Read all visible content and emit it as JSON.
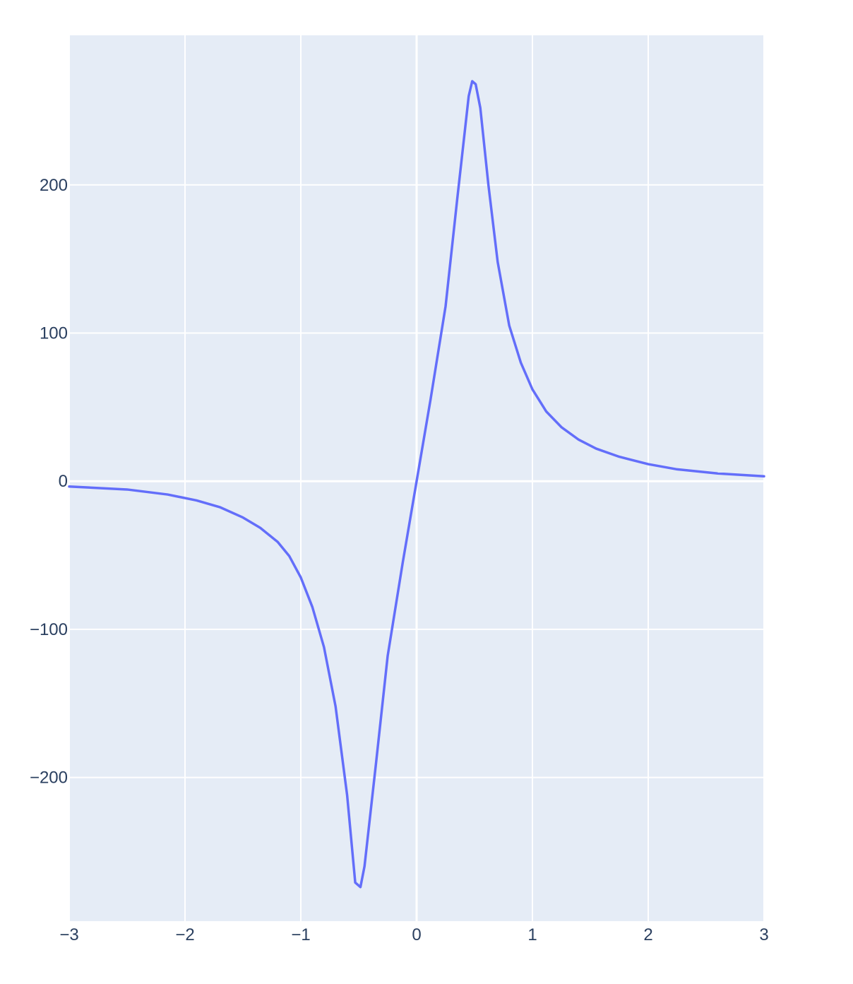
{
  "chart_data": {
    "type": "line",
    "title": "",
    "xlabel": "",
    "ylabel": "",
    "xlim": [
      -3,
      3
    ],
    "ylim": [
      -297,
      301
    ],
    "grid": true,
    "legend": "none",
    "colors": {
      "line": "#636efa",
      "plot_bg": "#e5ecf6",
      "grid": "#ffffff",
      "tick_text": "#2a3f5f"
    },
    "x_ticks": [
      {
        "value": -3,
        "label": "−3"
      },
      {
        "value": -2,
        "label": "−2"
      },
      {
        "value": -1,
        "label": "−1"
      },
      {
        "value": 0,
        "label": "0"
      },
      {
        "value": 1,
        "label": "1"
      },
      {
        "value": 2,
        "label": "2"
      },
      {
        "value": 3,
        "label": "3"
      }
    ],
    "y_ticks": [
      {
        "value": -200,
        "label": "−200"
      },
      {
        "value": -100,
        "label": "−100"
      },
      {
        "value": 0,
        "label": "0"
      },
      {
        "value": 100,
        "label": "100"
      },
      {
        "value": 200,
        "label": "200"
      }
    ],
    "series": [
      {
        "values": [
          {
            "x": -3.0,
            "y": -3.6
          },
          {
            "x": -2.5,
            "y": -5.6
          },
          {
            "x": -2.15,
            "y": -9.0
          },
          {
            "x": -1.9,
            "y": -13.0
          },
          {
            "x": -1.7,
            "y": -17.5
          },
          {
            "x": -1.5,
            "y": -24.5
          },
          {
            "x": -1.35,
            "y": -31.5
          },
          {
            "x": -1.2,
            "y": -41.0
          },
          {
            "x": -1.1,
            "y": -50.5
          },
          {
            "x": -1.0,
            "y": -65.0
          },
          {
            "x": -0.9,
            "y": -85.0
          },
          {
            "x": -0.8,
            "y": -112.0
          },
          {
            "x": -0.7,
            "y": -152.0
          },
          {
            "x": -0.6,
            "y": -212.0
          },
          {
            "x": -0.53,
            "y": -271.0
          },
          {
            "x": -0.485,
            "y": -274.0
          },
          {
            "x": -0.45,
            "y": -260.0
          },
          {
            "x": -0.35,
            "y": -190.0
          },
          {
            "x": -0.25,
            "y": -118.0
          },
          {
            "x": -0.12,
            "y": -55.0
          },
          {
            "x": 0.0,
            "y": 0.0
          },
          {
            "x": 0.12,
            "y": 55.0
          },
          {
            "x": 0.25,
            "y": 118.0
          },
          {
            "x": 0.35,
            "y": 190.0
          },
          {
            "x": 0.45,
            "y": 260.0
          },
          {
            "x": 0.48,
            "y": 270.0
          },
          {
            "x": 0.51,
            "y": 268.0
          },
          {
            "x": 0.55,
            "y": 252.0
          },
          {
            "x": 0.62,
            "y": 200.0
          },
          {
            "x": 0.7,
            "y": 148.0
          },
          {
            "x": 0.8,
            "y": 105.0
          },
          {
            "x": 0.9,
            "y": 80.0
          },
          {
            "x": 1.0,
            "y": 62.0
          },
          {
            "x": 1.12,
            "y": 47.0
          },
          {
            "x": 1.25,
            "y": 36.5
          },
          {
            "x": 1.4,
            "y": 28.0
          },
          {
            "x": 1.55,
            "y": 22.0
          },
          {
            "x": 1.75,
            "y": 16.5
          },
          {
            "x": 2.0,
            "y": 11.5
          },
          {
            "x": 2.25,
            "y": 8.0
          },
          {
            "x": 2.6,
            "y": 5.2
          },
          {
            "x": 3.0,
            "y": 3.3
          }
        ]
      }
    ]
  }
}
